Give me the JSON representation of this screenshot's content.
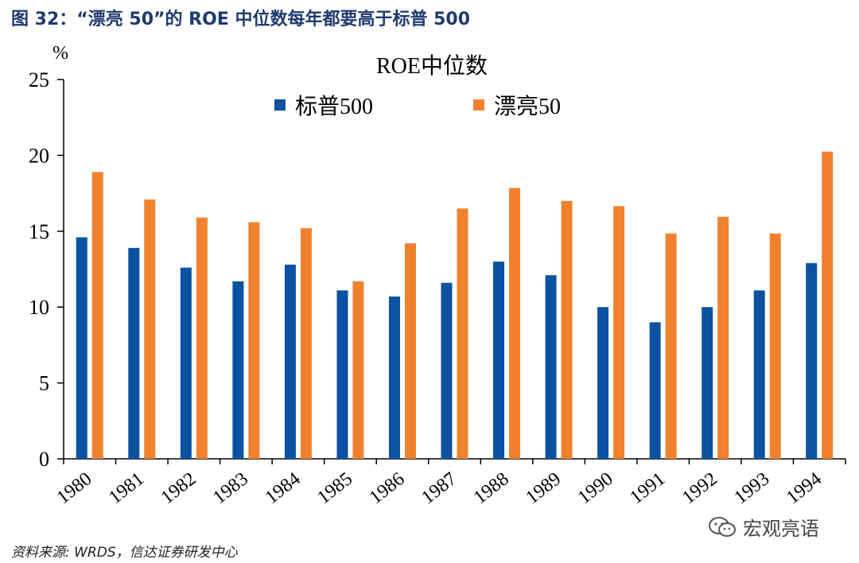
{
  "figure_title": "图 32：“漂亮 50”的 ROE 中位数每年都要高于标普 500",
  "source_note": "资料来源: WRDS，信达证券研发中心",
  "watermark": {
    "text": "宏观亮语",
    "icon": "wechat-icon"
  },
  "chart_data": {
    "type": "bar",
    "title": "ROE中位数",
    "ylabel": "%",
    "xlabel": "",
    "ylim": [
      0,
      25
    ],
    "yticks": [
      "0",
      "5",
      "10",
      "15",
      "20",
      "25"
    ],
    "grid": false,
    "legend_position": "top-center",
    "categories": [
      "1980",
      "1981",
      "1982",
      "1983",
      "1984",
      "1985",
      "1986",
      "1987",
      "1988",
      "1989",
      "1990",
      "1991",
      "1992",
      "1993",
      "1994"
    ],
    "series": [
      {
        "name": "标普500",
        "color": "#0b52a0",
        "values": [
          14.6,
          13.9,
          12.6,
          11.7,
          12.8,
          11.1,
          10.7,
          11.6,
          13.0,
          12.1,
          10.0,
          9.0,
          10.0,
          11.1,
          12.9
        ]
      },
      {
        "name": "漂亮50",
        "color": "#f0822e",
        "values": [
          18.9,
          17.1,
          15.9,
          15.6,
          15.2,
          11.7,
          14.2,
          16.5,
          17.85,
          17.0,
          16.65,
          14.85,
          15.95,
          14.85,
          20.25
        ]
      }
    ]
  }
}
